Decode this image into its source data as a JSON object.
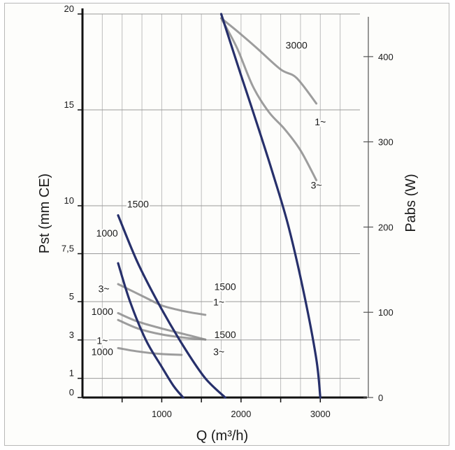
{
  "chart_data": {
    "type": "line",
    "title": "",
    "xlabel": "Q (m³/h)",
    "ylabel_left": "Pst (mm CE)",
    "ylabel_right": "Pabs (W)",
    "xlim": [
      0,
      3500
    ],
    "ylim_left": [
      0,
      20
    ],
    "ylim_right": [
      0,
      450
    ],
    "x_ticks": [
      1000,
      2000,
      3000
    ],
    "y_left_ticks": [
      {
        "value": 20,
        "label": "20"
      },
      {
        "value": 15,
        "label": "15"
      },
      {
        "value": 10,
        "label": "10"
      },
      {
        "value": 7.5,
        "label": "7,5"
      },
      {
        "value": 5,
        "label": "5"
      },
      {
        "value": 3,
        "label": "3"
      },
      {
        "value": 1,
        "label": "1"
      },
      {
        "value": 0,
        "label": "0"
      }
    ],
    "y_right_ticks": [
      {
        "value": 400,
        "label": "400"
      },
      {
        "value": 300,
        "label": "300"
      },
      {
        "value": 200,
        "label": "200"
      },
      {
        "value": 100,
        "label": "100"
      },
      {
        "value": 0,
        "label": "0"
      }
    ],
    "grid": true,
    "series": [
      {
        "name": "",
        "axis": "left",
        "color": "#27306b",
        "x": [
          450,
          600,
          800,
          1000,
          1150,
          1270
        ],
        "y": [
          7,
          5,
          3,
          1.6,
          0.6,
          0
        ]
      },
      {
        "name": "",
        "axis": "left",
        "color": "#27306b",
        "x": [
          450,
          700,
          1000,
          1300,
          1550,
          1800
        ],
        "y": [
          9.5,
          7,
          4.6,
          2.5,
          1,
          0
        ]
      },
      {
        "name": "",
        "axis": "left",
        "color": "#27306b",
        "x": [
          1750,
          2000,
          2200,
          2400,
          2600,
          2800,
          2950,
          3000
        ],
        "y": [
          20,
          16.8,
          14.3,
          11.7,
          8.9,
          5.3,
          2,
          0
        ]
      },
      {
        "name": "",
        "axis": "right",
        "color": "#8c8c8c",
        "x": [
          450,
          800,
          1000,
          1200,
          1350,
          1550
        ],
        "y": [
          133,
          117,
          108,
          103,
          100,
          97
        ]
      },
      {
        "name": "",
        "axis": "right",
        "color": "#8c8c8c",
        "x": [
          450,
          700,
          1000,
          1300,
          1550
        ],
        "y": [
          99,
          89,
          81,
          74,
          68
        ]
      },
      {
        "name": "",
        "axis": "right",
        "color": "#8c8c8c",
        "x": [
          450,
          700,
          1000,
          1300,
          1550
        ],
        "y": [
          91,
          81,
          74,
          70,
          68
        ]
      },
      {
        "name": "",
        "axis": "right",
        "color": "#8c8c8c",
        "x": [
          450,
          700,
          1000,
          1250
        ],
        "y": [
          58,
          54,
          51,
          50
        ]
      },
      {
        "name": "",
        "axis": "right",
        "color": "#8c8c8c",
        "x": [
          1750,
          1950,
          2200,
          2500,
          2700,
          2950
        ],
        "y": [
          445,
          430,
          410,
          385,
          375,
          345
        ]
      },
      {
        "name": "",
        "axis": "right",
        "color": "#8c8c8c",
        "x": [
          1750,
          1950,
          2150,
          2350,
          2550,
          2750,
          2950
        ],
        "y": [
          445,
          410,
          365,
          335,
          315,
          290,
          255
        ]
      }
    ],
    "annotations": [
      {
        "text": "1500",
        "x": 700,
        "y_left": 9.9
      },
      {
        "text": "1000",
        "x": 310,
        "y_left": 8.4
      },
      {
        "text": "3~",
        "x": 270,
        "y_left": 5.5
      },
      {
        "text": "1000",
        "x": 250,
        "y_left": 4.3
      },
      {
        "text": "1~",
        "x": 250,
        "y_left": 2.8
      },
      {
        "text": "1000",
        "x": 250,
        "y_left": 2.2
      },
      {
        "text": "1500",
        "x": 1800,
        "y_left": 5.6
      },
      {
        "text": "1~",
        "x": 1720,
        "y_left": 4.8
      },
      {
        "text": "1500",
        "x": 1800,
        "y_left": 3.1
      },
      {
        "text": "3~",
        "x": 1720,
        "y_left": 2.2
      },
      {
        "text": "3000",
        "x": 2700,
        "y_left": 18.2
      },
      {
        "text": "1~",
        "x": 3000,
        "y_left": 14.2
      },
      {
        "text": "3~",
        "x": 2950,
        "y_left": 10.9
      }
    ]
  }
}
